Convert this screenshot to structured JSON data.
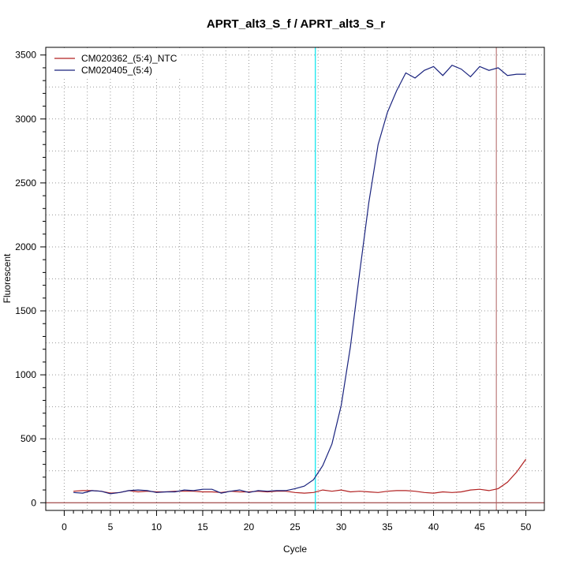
{
  "chart_data": {
    "type": "line",
    "title": "APRT_alt3_S_f / APRT_alt3_S_r",
    "xlabel": "Cycle",
    "ylabel": "Fluorescent",
    "xlim": [
      -2,
      52
    ],
    "ylim": [
      -60,
      3560
    ],
    "xticks": [
      0,
      5,
      10,
      15,
      20,
      25,
      30,
      35,
      40,
      45,
      50
    ],
    "yticks": [
      0,
      500,
      1000,
      1500,
      2000,
      2500,
      3000,
      3500
    ],
    "grid": true,
    "legend": "top-left",
    "colors": {
      "ntc": "#b22222",
      "sample": "#1a237e",
      "cyan_line": "#00e5ee",
      "ref_line": "#b06060",
      "zero_line": "#8b2020"
    },
    "vlines": [
      27.2,
      46.8
    ],
    "hline": 0,
    "series": [
      {
        "name": "CM020362_(5:4)_NTC",
        "x": [
          1,
          2,
          3,
          4,
          5,
          6,
          7,
          8,
          9,
          10,
          11,
          12,
          13,
          14,
          15,
          16,
          17,
          18,
          19,
          20,
          21,
          22,
          23,
          24,
          25,
          26,
          27,
          28,
          29,
          30,
          31,
          32,
          33,
          34,
          35,
          36,
          37,
          38,
          39,
          40,
          41,
          42,
          43,
          44,
          45,
          46,
          47,
          48,
          49,
          50
        ],
        "values": [
          90,
          95,
          95,
          90,
          75,
          80,
          95,
          85,
          90,
          85,
          85,
          90,
          90,
          90,
          85,
          85,
          80,
          90,
          85,
          85,
          90,
          85,
          90,
          90,
          80,
          75,
          80,
          100,
          90,
          100,
          85,
          90,
          85,
          80,
          90,
          95,
          95,
          90,
          80,
          75,
          85,
          80,
          85,
          100,
          105,
          95,
          110,
          160,
          240,
          340
        ]
      },
      {
        "name": "CM020405_(5:4)",
        "x": [
          1,
          2,
          3,
          4,
          5,
          6,
          7,
          8,
          9,
          10,
          11,
          12,
          13,
          14,
          15,
          16,
          17,
          18,
          19,
          20,
          21,
          22,
          23,
          24,
          25,
          26,
          27,
          28,
          29,
          30,
          31,
          32,
          33,
          34,
          35,
          36,
          37,
          38,
          39,
          40,
          41,
          42,
          43,
          44,
          45,
          46,
          47,
          48,
          49,
          50
        ],
        "values": [
          80,
          75,
          95,
          90,
          70,
          80,
          95,
          100,
          95,
          80,
          85,
          85,
          100,
          95,
          105,
          105,
          75,
          90,
          100,
          80,
          95,
          90,
          95,
          95,
          110,
          130,
          180,
          290,
          460,
          760,
          1220,
          1800,
          2350,
          2800,
          3050,
          3220,
          3360,
          3320,
          3380,
          3410,
          3340,
          3420,
          3390,
          3330,
          3410,
          3380,
          3400,
          3340,
          3350,
          3350
        ]
      }
    ]
  }
}
